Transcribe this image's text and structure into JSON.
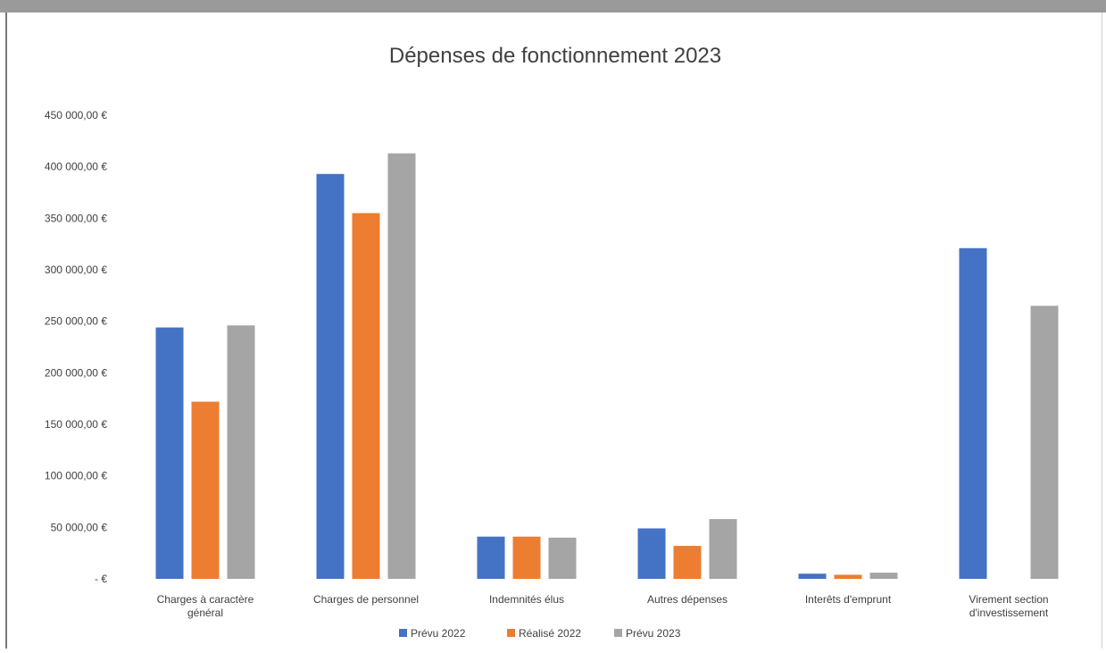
{
  "chart_data": {
    "type": "bar",
    "title": "Dépenses de fonctionnement 2023",
    "xlabel": "",
    "ylabel": "",
    "ylim": [
      0,
      450000
    ],
    "yticks": [
      {
        "value": 450000,
        "label": "450 000,00 €"
      },
      {
        "value": 400000,
        "label": "400 000,00 €"
      },
      {
        "value": 350000,
        "label": "350 000,00 €"
      },
      {
        "value": 300000,
        "label": "300 000,00 €"
      },
      {
        "value": 250000,
        "label": "250 000,00 €"
      },
      {
        "value": 200000,
        "label": "200 000,00 €"
      },
      {
        "value": 150000,
        "label": "150 000,00 €"
      },
      {
        "value": 100000,
        "label": "100 000,00 €"
      },
      {
        "value": 50000,
        "label": "50 000,00 €"
      },
      {
        "value": 0,
        "label": "- €"
      }
    ],
    "categories": [
      [
        "Charges à caractère",
        "général"
      ],
      [
        "Charges de personnel"
      ],
      [
        "Indemnités élus"
      ],
      [
        "Autres dépenses"
      ],
      [
        "Interêts d'emprunt"
      ],
      [
        "Virement section",
        "d'investissement"
      ]
    ],
    "series": [
      {
        "name": "Prévu 2022",
        "color": "#4472c4",
        "values": [
          244000,
          393000,
          41000,
          49000,
          5000,
          321000
        ]
      },
      {
        "name": "Réalisé 2022",
        "color": "#ed7d31",
        "values": [
          172000,
          355000,
          41000,
          32000,
          4000,
          0
        ]
      },
      {
        "name": "Prévu 2023",
        "color": "#a5a5a5",
        "values": [
          246000,
          413000,
          40000,
          58000,
          6000,
          265000
        ]
      }
    ],
    "legend_position": "bottom",
    "grid": false
  }
}
